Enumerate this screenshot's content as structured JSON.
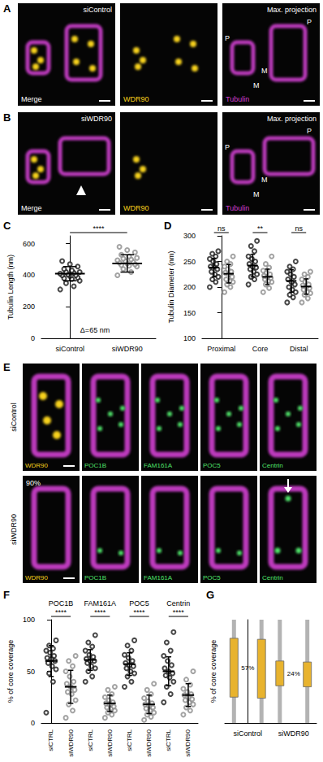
{
  "figure": {
    "A": {
      "label": "A",
      "condition": "siControl",
      "tiles": [
        "Merge",
        "WDR90",
        "Tubulin"
      ],
      "projection": "Max. projection",
      "marks": [
        "P",
        "M",
        "M",
        "P"
      ]
    },
    "B": {
      "label": "B",
      "condition": "siWDR90",
      "tiles": [
        "Merge",
        "WDR90",
        "Tubulin"
      ],
      "projection": "Max. projection",
      "marks": [
        "P",
        "M",
        "M",
        "P"
      ]
    },
    "E": {
      "label": "E",
      "rows": [
        {
          "condition": "siControl",
          "tiles": [
            "WDR90",
            "POC1B",
            "FAM161A",
            "POC5",
            "Centrin"
          ]
        },
        {
          "condition": "siWDR90",
          "percent": "90%",
          "tiles": [
            "WDR90",
            "POC1B",
            "FAM161A",
            "POC5",
            "Centrin"
          ]
        }
      ]
    }
  },
  "chart_data": [
    {
      "label": "C",
      "type": "scatter",
      "categories": [
        "siControl",
        "siWDR90"
      ],
      "ylabel": "Tubulin Length (nm)",
      "ylim": [
        0,
        650
      ],
      "yticks": [
        0,
        200,
        400,
        600
      ],
      "grid": false,
      "series": [
        {
          "colors": [
            "#1a1a1a",
            "#8c8c8c"
          ],
          "values": [
            [
              310,
              330,
              350,
              365,
              375,
              380,
              385,
              395,
              400,
              400,
              405,
              410,
              415,
              420,
              420,
              430,
              440,
              455,
              470,
              490
            ],
            [
              400,
              420,
              440,
              455,
              460,
              465,
              470,
              475,
              480,
              485,
              490,
              495,
              500,
              505,
              510,
              520,
              530,
              545,
              560,
              580
            ]
          ],
          "mean": [
            410,
            475
          ],
          "sd": [
            45,
            55
          ]
        }
      ],
      "significance": [
        "****"
      ],
      "annotation": "Δ=65 nm"
    },
    {
      "label": "D",
      "type": "scatter",
      "categories": [
        "Proximal",
        "Core",
        "Distal"
      ],
      "ylabel": "Tubulin Diameter (nm)",
      "ylim": [
        100,
        300
      ],
      "yticks": [
        100,
        150,
        200,
        250,
        300
      ],
      "grid": false,
      "series": [
        {
          "color": "#1a1a1a",
          "values": [
            [
              200,
              210,
              215,
              220,
              225,
              230,
              235,
              240,
              240,
              245,
              250,
              255,
              260,
              265,
              270
            ],
            [
              205,
              215,
              220,
              225,
              230,
              235,
              238,
              240,
              245,
              250,
              255,
              260,
              270,
              280,
              290
            ],
            [
              170,
              180,
              185,
              190,
              195,
              200,
              205,
              210,
              215,
              220,
              225,
              230,
              235,
              240,
              250
            ]
          ],
          "mean": [
            238,
            242,
            212
          ],
          "sd": [
            18,
            22,
            22
          ]
        },
        {
          "color": "#8c8c8c",
          "values": [
            [
              190,
              200,
              205,
              210,
              212,
              215,
              220,
              225,
              228,
              230,
              235,
              240,
              245,
              250,
              260
            ],
            [
              190,
              198,
              205,
              210,
              212,
              215,
              218,
              220,
              222,
              225,
              228,
              232,
              238,
              245,
              260
            ],
            [
              170,
              178,
              185,
              188,
              190,
              195,
              198,
              200,
              203,
              205,
              210,
              215,
              220,
              225,
              230
            ]
          ],
          "mean": [
            226,
            220,
            201
          ],
          "sd": [
            18,
            15,
            15
          ]
        }
      ],
      "significance": [
        "ns",
        "**",
        "ns"
      ]
    },
    {
      "label": "F",
      "type": "scatter",
      "categories": [
        "POC1B",
        "FAM161A",
        "POC5",
        "Centrin"
      ],
      "ylabel": "% of core coverage",
      "ylim": [
        0,
        100
      ],
      "yticks": [
        0,
        50,
        100
      ],
      "grid": false,
      "series": [
        {
          "name": "siCTRL",
          "color": "#1a1a1a",
          "values": [
            [
              10,
              40,
              48,
              52,
              55,
              58,
              60,
              62,
              63,
              65,
              68,
              70,
              72,
              75,
              80
            ],
            [
              40,
              45,
              50,
              53,
              55,
              58,
              60,
              60,
              62,
              64,
              66,
              70,
              74,
              78,
              85
            ],
            [
              35,
              40,
              45,
              48,
              50,
              53,
              55,
              56,
              58,
              60,
              63,
              66,
              70,
              75,
              80
            ],
            [
              20,
              28,
              35,
              40,
              44,
              46,
              48,
              50,
              53,
              56,
              60,
              65,
              70,
              78,
              88
            ]
          ],
          "mean": [
            60,
            61,
            57,
            50
          ],
          "sd": [
            15,
            10,
            11,
            14
          ]
        },
        {
          "name": "siWDR90",
          "color": "#8c8c8c",
          "values": [
            [
              5,
              12,
              18,
              22,
              28,
              30,
              32,
              35,
              38,
              40,
              45,
              50,
              55,
              60,
              65
            ],
            [
              5,
              8,
              10,
              12,
              14,
              15,
              16,
              18,
              19,
              20,
              22,
              25,
              28,
              32,
              35
            ],
            [
              3,
              6,
              8,
              10,
              12,
              14,
              15,
              17,
              18,
              19,
              21,
              24,
              28,
              32,
              38
            ],
            [
              8,
              12,
              15,
              18,
              20,
              22,
              23,
              25,
              27,
              28,
              30,
              33,
              37,
              42,
              50
            ]
          ],
          "mean": [
            35,
            19,
            18,
            27
          ],
          "sd": [
            16,
            8,
            9,
            11
          ]
        }
      ],
      "significance": [
        "****",
        "****",
        "****",
        "****"
      ]
    },
    {
      "label": "G",
      "type": "bar",
      "categories": [
        "siControl",
        "siWDR90"
      ],
      "ylabel": "% of core coverage",
      "ylim": [
        0,
        100
      ],
      "tick_labels": "x",
      "length": [
        100,
        100
      ],
      "series": [
        {
          "color": "#e8b32e",
          "start": [
            25,
            36
          ],
          "values": [
            57,
            24
          ]
        },
        {
          "color": "#e8b32e",
          "start": [
            24,
            35
          ],
          "values": [
            57,
            24
          ]
        }
      ],
      "value_labels": [
        "57%",
        "24%"
      ]
    }
  ]
}
